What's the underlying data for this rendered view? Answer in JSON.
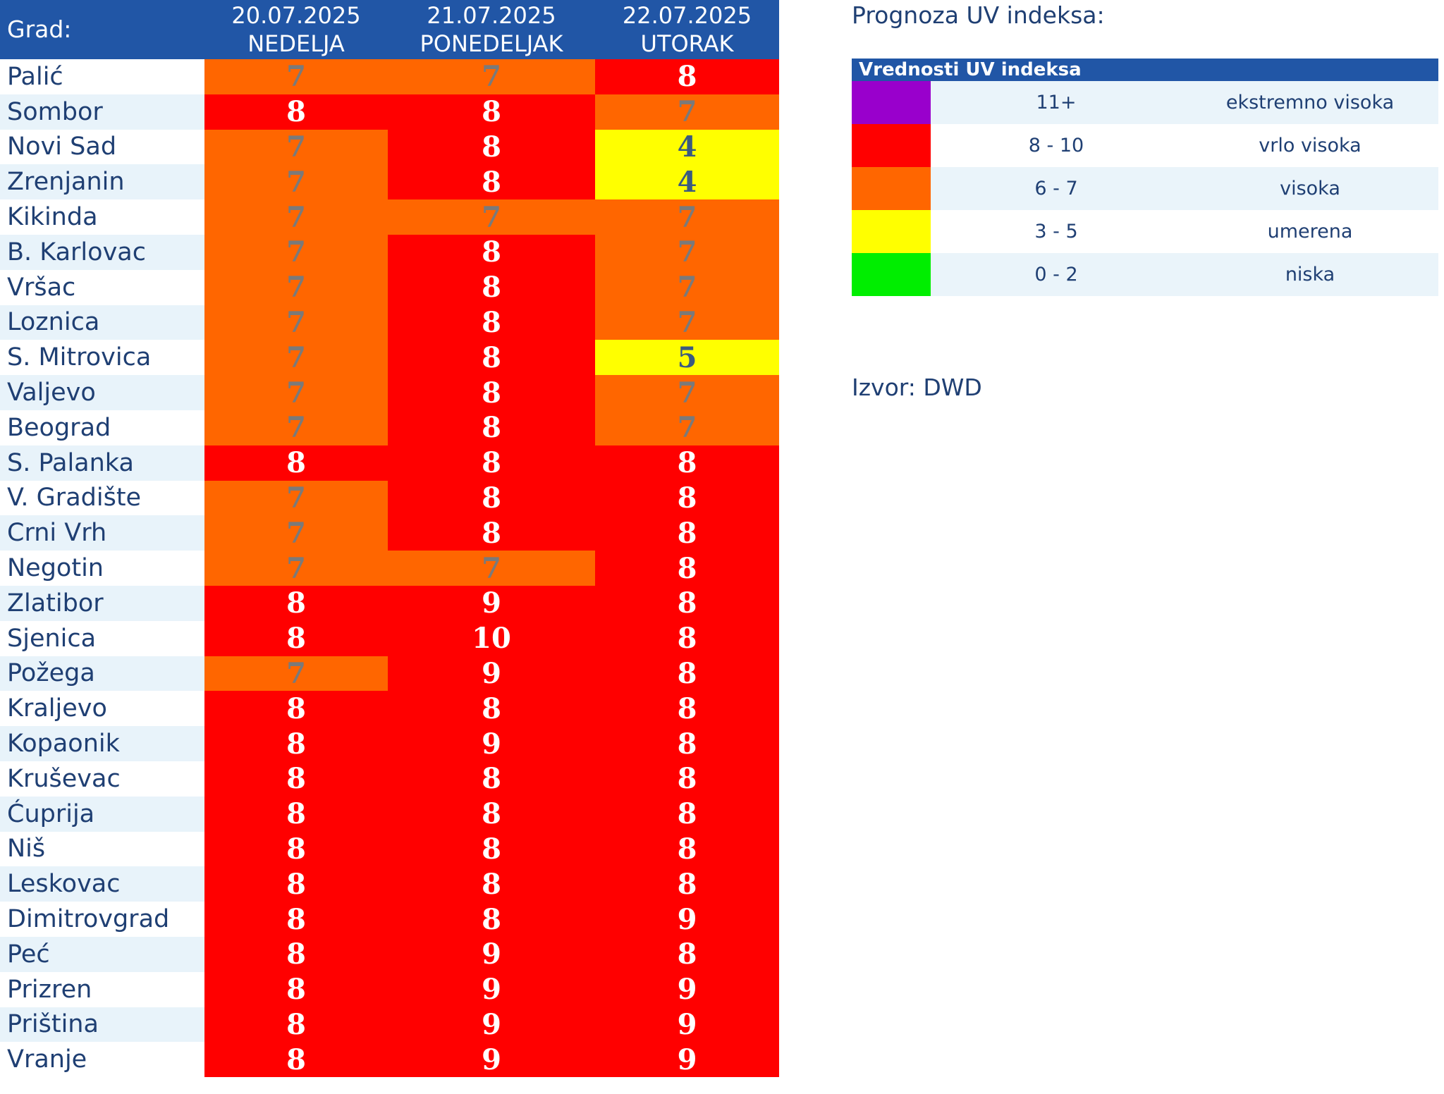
{
  "table": {
    "headers": {
      "city": "Grad:",
      "days": [
        {
          "date": "20.07.2025",
          "weekday": "NEDELJA"
        },
        {
          "date": "21.07.2025",
          "weekday": "PONEDELJAK"
        },
        {
          "date": "22.07.2025",
          "weekday": "UTORAK"
        }
      ]
    },
    "rows": [
      {
        "city": "Palić",
        "values": [
          "7",
          "7",
          "8"
        ]
      },
      {
        "city": "Sombor",
        "values": [
          "8",
          "8",
          "7"
        ]
      },
      {
        "city": "Novi Sad",
        "values": [
          "7",
          "8",
          "4"
        ]
      },
      {
        "city": "Zrenjanin",
        "values": [
          "7",
          "8",
          "4"
        ]
      },
      {
        "city": "Kikinda",
        "values": [
          "7",
          "7",
          "7"
        ]
      },
      {
        "city": "B. Karlovac",
        "values": [
          "7",
          "8",
          "7"
        ]
      },
      {
        "city": "Vršac",
        "values": [
          "7",
          "8",
          "7"
        ]
      },
      {
        "city": "Loznica",
        "values": [
          "7",
          "8",
          "7"
        ]
      },
      {
        "city": "S. Mitrovica",
        "values": [
          "7",
          "8",
          "5"
        ]
      },
      {
        "city": "Valjevo",
        "values": [
          "7",
          "8",
          "7"
        ]
      },
      {
        "city": "Beograd",
        "values": [
          "7",
          "8",
          "7"
        ]
      },
      {
        "city": "S. Palanka",
        "values": [
          "8",
          "8",
          "8"
        ]
      },
      {
        "city": "V. Gradište",
        "values": [
          "7",
          "8",
          "8"
        ]
      },
      {
        "city": "Crni Vrh",
        "values": [
          "7",
          "8",
          "8"
        ]
      },
      {
        "city": "Negotin",
        "values": [
          "7",
          "7",
          "8"
        ]
      },
      {
        "city": "Zlatibor",
        "values": [
          "8",
          "9",
          "8"
        ]
      },
      {
        "city": "Sjenica",
        "values": [
          "8",
          "10",
          "8"
        ]
      },
      {
        "city": "Požega",
        "values": [
          "7",
          "9",
          "8"
        ]
      },
      {
        "city": "Kraljevo",
        "values": [
          "8",
          "8",
          "8"
        ]
      },
      {
        "city": "Kopaonik",
        "values": [
          "8",
          "9",
          "8"
        ]
      },
      {
        "city": "Kruševac",
        "values": [
          "8",
          "8",
          "8"
        ]
      },
      {
        "city": "Ćuprija",
        "values": [
          "8",
          "8",
          "8"
        ]
      },
      {
        "city": "Niš",
        "values": [
          "8",
          "8",
          "8"
        ]
      },
      {
        "city": "Leskovac",
        "values": [
          "8",
          "8",
          "8"
        ]
      },
      {
        "city": "Dimitrovgrad",
        "values": [
          "8",
          "8",
          "9"
        ]
      },
      {
        "city": "Peć",
        "values": [
          "8",
          "9",
          "8"
        ]
      },
      {
        "city": "Prizren",
        "values": [
          "8",
          "9",
          "9"
        ]
      },
      {
        "city": "Priština",
        "values": [
          "8",
          "9",
          "9"
        ]
      },
      {
        "city": "Vranje",
        "values": [
          "8",
          "9",
          "9"
        ]
      }
    ]
  },
  "legend": {
    "title": "Prognoza UV indeksa:",
    "header": "Vrednosti UV indeksa",
    "levels": [
      {
        "range": "11+",
        "label": "ekstremno visoka",
        "color": "#9900cc"
      },
      {
        "range": "8 - 10",
        "label": "vrlo visoka",
        "color": "#ff0000"
      },
      {
        "range": "6 - 7",
        "label": "visoka",
        "color": "#ff6600"
      },
      {
        "range": "3 - 5",
        "label": "umerena",
        "color": "#ffff00"
      },
      {
        "range": "0 - 2",
        "label": "niska",
        "color": "#00ee00"
      }
    ]
  },
  "source": "Izvor: DWD"
}
